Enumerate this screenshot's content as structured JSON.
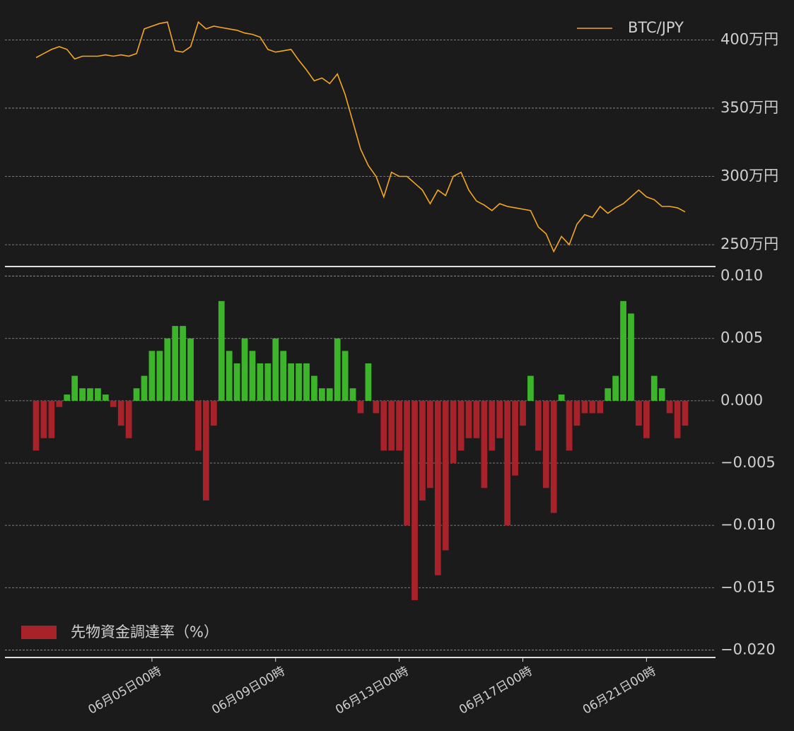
{
  "chart_data": [
    {
      "type": "line",
      "x": [
        "06月01日06時",
        "06月01日12時",
        "06月01日18時",
        "06月02日00時",
        "06月02日06時",
        "06月02日12時",
        "06月02日18時",
        "06月03日00時",
        "06月03日06時",
        "06月03日12時",
        "06月03日18時",
        "06月04日00時",
        "06月04日06時",
        "06月04日12時",
        "06月04日18時",
        "06月05日00時",
        "06月05日06時",
        "06月05日12時",
        "06月05日18時",
        "06月06日00時",
        "06月06日06時",
        "06月06日12時",
        "06月06日18時",
        "06月07日00時",
        "06月07日06時",
        "06月07日12時",
        "06月07日18時",
        "06月08日00時",
        "06月08日06時",
        "06月08日12時",
        "06月08日18時",
        "06月09日00時",
        "06月09日06時",
        "06月09日12時",
        "06月09日18時",
        "06月10日00時",
        "06月10日06時",
        "06月10日12時",
        "06月10日18時",
        "06月11日00時",
        "06月11日06時",
        "06月11日12時",
        "06月11日18時",
        "06月12日00時",
        "06月12日06時",
        "06月12日12時",
        "06月12日18時",
        "06月13日00時",
        "06月13日06時",
        "06月13日12時",
        "06月13日18時",
        "06月14日00時",
        "06月14日06時",
        "06月14日12時",
        "06月14日18時",
        "06月15日00時",
        "06月15日06時",
        "06月15日12時",
        "06月15日18時",
        "06月16日00時",
        "06月16日06時",
        "06月16日12時",
        "06月16日18時",
        "06月17日00時",
        "06月17日06時",
        "06月17日12時",
        "06月17日18時",
        "06月18日00時",
        "06月18日06時",
        "06月18日12時",
        "06月18日18時",
        "06月19日00時",
        "06月19日06時",
        "06月19日12時",
        "06月19日18時",
        "06月20日00時",
        "06月20日06時",
        "06月20日12時",
        "06月20日18時",
        "06月21日00時",
        "06月21日06時",
        "06月21日12時",
        "06月21日18時",
        "06月22日00時",
        "06月22日06時"
      ],
      "series": [
        {
          "name": "BTC/JPY",
          "color": "#f5a623",
          "values": [
            387,
            390,
            393,
            395,
            393,
            386,
            388,
            388,
            388,
            389,
            388,
            389,
            388,
            390,
            408,
            410,
            412,
            413,
            392,
            391,
            395,
            413,
            408,
            410,
            409,
            408,
            407,
            405,
            404,
            402,
            393,
            391,
            392,
            393,
            385,
            378,
            370,
            372,
            368,
            375,
            360,
            340,
            320,
            308,
            300,
            285,
            303,
            300,
            300,
            295,
            290,
            280,
            290,
            286,
            300,
            303,
            290,
            282,
            279,
            275,
            280,
            278,
            277,
            276,
            275,
            263,
            258,
            245,
            256,
            250,
            265,
            272,
            270,
            278,
            273,
            277,
            280,
            285,
            290,
            285,
            283,
            278,
            278,
            277,
            274
          ]
        }
      ],
      "ylim": [
        234,
        424
      ],
      "yticks": [
        {
          "value": 250,
          "label": "250万円"
        },
        {
          "value": 300,
          "label": "300万円"
        },
        {
          "value": 350,
          "label": "350万円"
        },
        {
          "value": 400,
          "label": "400万円"
        }
      ],
      "grid": true,
      "legend": "upper right"
    },
    {
      "type": "bar",
      "x": [
        "06月01日06時",
        "06月01日12時",
        "06月01日18時",
        "06月02日00時",
        "06月02日06時",
        "06月02日12時",
        "06月02日18時",
        "06月03日00時",
        "06月03日06時",
        "06月03日12時",
        "06月03日18時",
        "06月04日00時",
        "06月04日06時",
        "06月04日12時",
        "06月04日18時",
        "06月05日00時",
        "06月05日06時",
        "06月05日12時",
        "06月05日18時",
        "06月06日00時",
        "06月06日06時",
        "06月06日12時",
        "06月06日18時",
        "06月07日00時",
        "06月07日06時",
        "06月07日12時",
        "06月07日18時",
        "06月08日00時",
        "06月08日06時",
        "06月08日12時",
        "06月08日18時",
        "06月09日00時",
        "06月09日06時",
        "06月09日12時",
        "06月09日18時",
        "06月10日00時",
        "06月10日06時",
        "06月10日12時",
        "06月10日18時",
        "06月11日00時",
        "06月11日06時",
        "06月11日12時",
        "06月11日18時",
        "06月12日00時",
        "06月12日06時",
        "06月12日12時",
        "06月12日18時",
        "06月13日00時",
        "06月13日06時",
        "06月13日12時",
        "06月13日18時",
        "06月14日00時",
        "06月14日06時",
        "06月14日12時",
        "06月14日18時",
        "06月15日00時",
        "06月15日06時",
        "06月15日12時",
        "06月15日18時",
        "06月16日00時",
        "06月16日06時",
        "06月16日12時",
        "06月16日18時",
        "06月17日00時",
        "06月17日06時",
        "06月17日12時",
        "06月17日18時",
        "06月18日00時",
        "06月18日06時",
        "06月18日12時",
        "06月18日18時",
        "06月19日00時",
        "06月19日06時",
        "06月19日12時",
        "06月19日18時",
        "06月20日00時",
        "06月20日06時",
        "06月20日12時",
        "06月20日18時",
        "06月21日00時",
        "06月21日06時",
        "06月21日12時",
        "06月21日18時",
        "06月22日00時",
        "06月22日06時"
      ],
      "series": [
        {
          "name": "先物資金調達率（%）",
          "color": "#a8222a",
          "positive_color": "#3cb52a",
          "values": [
            -0.004,
            -0.003,
            -0.003,
            -0.0005,
            0.0005,
            0.002,
            0.001,
            0.001,
            0.001,
            0.0005,
            -0.0005,
            -0.002,
            -0.003,
            0.001,
            0.002,
            0.004,
            0.004,
            0.005,
            0.006,
            0.006,
            0.005,
            -0.004,
            -0.008,
            -0.002,
            0.008,
            0.004,
            0.003,
            0.005,
            0.004,
            0.003,
            0.003,
            0.005,
            0.004,
            0.003,
            0.003,
            0.003,
            0.002,
            0.001,
            0.001,
            0.005,
            0.004,
            0.001,
            -0.001,
            0.003,
            -0.001,
            -0.004,
            -0.004,
            -0.004,
            -0.01,
            -0.016,
            -0.008,
            -0.007,
            -0.014,
            -0.012,
            -0.005,
            -0.004,
            -0.003,
            -0.003,
            -0.007,
            -0.004,
            -0.003,
            -0.01,
            -0.006,
            -0.002,
            0.002,
            -0.004,
            -0.007,
            -0.009,
            0.0005,
            -0.004,
            -0.002,
            -0.001,
            -0.001,
            -0.001,
            0.001,
            0.002,
            0.008,
            0.007,
            -0.002,
            -0.003,
            0.002,
            0.001,
            -0.001,
            -0.003,
            -0.002
          ]
        }
      ],
      "ylim": [
        -0.0206,
        0.0106
      ],
      "yticks": [
        {
          "value": -0.02,
          "label": "−0.020"
        },
        {
          "value": -0.015,
          "label": "−0.015"
        },
        {
          "value": -0.01,
          "label": "−0.010"
        },
        {
          "value": -0.005,
          "label": "−0.005"
        },
        {
          "value": 0,
          "label": "0.000"
        },
        {
          "value": 0.005,
          "label": "0.005"
        },
        {
          "value": 0.01,
          "label": "0.010"
        }
      ],
      "xticks": [
        "06月05日00時",
        "06月09日00時",
        "06月13日00時",
        "06月17日00時",
        "06月21日00時"
      ],
      "grid": true,
      "legend": "lower left"
    }
  ]
}
